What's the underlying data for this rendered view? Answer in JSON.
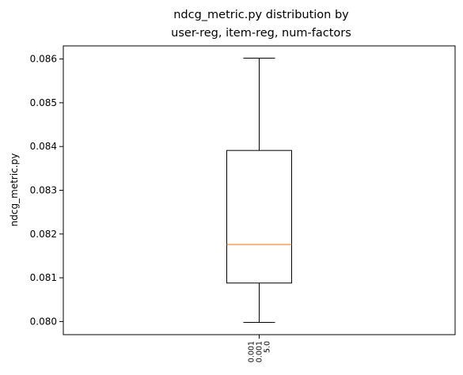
{
  "chart_data": {
    "type": "box",
    "title_lines": [
      "ndcg_metric.py distribution by",
      "user-reg, item-reg, num-factors"
    ],
    "ylabel": "ndcg_metric.py",
    "xlabel": "",
    "ylim": [
      0.0797,
      0.0863
    ],
    "yticks": [
      0.08,
      0.081,
      0.082,
      0.083,
      0.084,
      0.085,
      0.086
    ],
    "ytick_labels": [
      "0.080",
      "0.081",
      "0.082",
      "0.083",
      "0.084",
      "0.085",
      "0.086"
    ],
    "grid": false,
    "boxes": [
      {
        "category_lines": [
          "0.001",
          "0.001",
          "5.0"
        ],
        "whisker_low": 0.07998,
        "q1": 0.08088,
        "median": 0.08176,
        "q3": 0.08391,
        "whisker_high": 0.08602
      }
    ],
    "colors": {
      "box": "#000000",
      "median": "#ff7f0e",
      "axes": "#000000"
    }
  }
}
